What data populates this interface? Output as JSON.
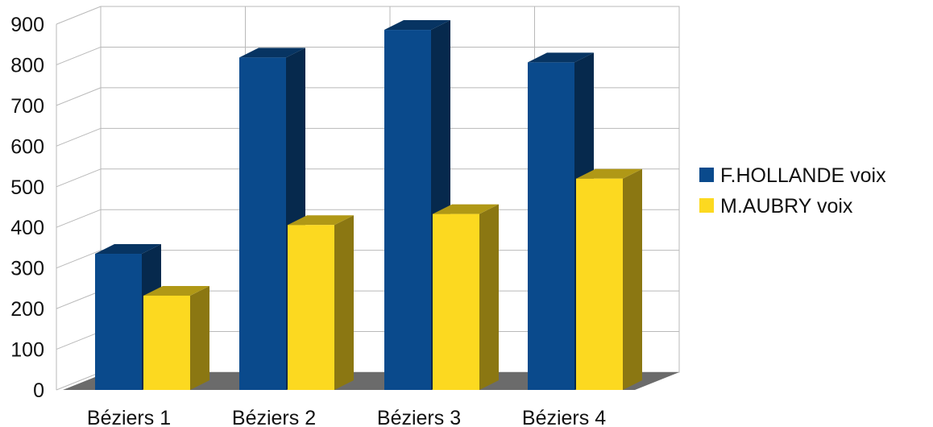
{
  "chart_data": {
    "type": "bar",
    "categories": [
      "Béziers 1",
      "Béziers 2",
      "Béziers 3",
      "Béziers 4"
    ],
    "series": [
      {
        "name": "F.HOLLANDE  voix",
        "color": "#0a4a8c",
        "values": [
          335,
          818,
          886,
          806
        ]
      },
      {
        "name": "M.AUBRY voix",
        "color": "#fcd920",
        "values": [
          232,
          406,
          433,
          520
        ]
      }
    ],
    "yticks": [
      "0",
      "100",
      "200",
      "300",
      "400",
      "500",
      "600",
      "700",
      "800",
      "900"
    ],
    "ylim": [
      0,
      900
    ],
    "grid": true,
    "legend": "right",
    "three_d": true
  }
}
